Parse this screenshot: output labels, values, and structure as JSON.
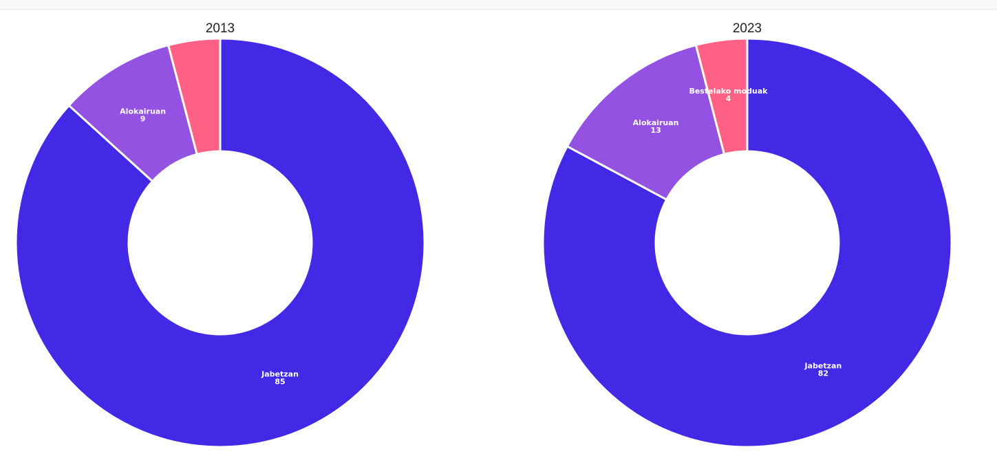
{
  "chart_data": [
    {
      "type": "pie",
      "title": "2013",
      "slices": [
        {
          "label": "Jabetzan",
          "value": 85,
          "color": "#4329e6"
        },
        {
          "label": "Alokairuan",
          "value": 9,
          "color": "#9452e3"
        },
        {
          "label": "",
          "value": 4,
          "color": "#ff6083"
        }
      ]
    },
    {
      "type": "pie",
      "title": "2023",
      "slices": [
        {
          "label": "Jabetzan",
          "value": 82,
          "color": "#4329e6"
        },
        {
          "label": "Alokairuan",
          "value": 13,
          "color": "#9452e3"
        },
        {
          "label": "Bestelako moduak",
          "value": 4,
          "color": "#ff6083"
        }
      ]
    }
  ]
}
